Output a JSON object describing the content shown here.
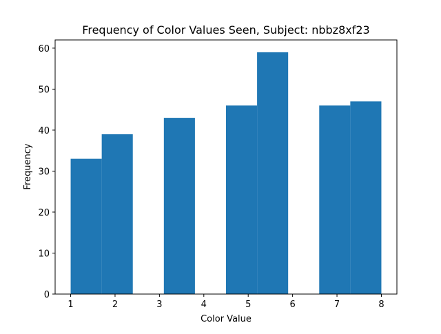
{
  "chart_data": {
    "type": "bar",
    "title": "Frequency of Color Values Seen, Subject: nbbz8xf23",
    "xlabel": "Color Value",
    "ylabel": "Frequency",
    "xlim": [
      0.65,
      8.35
    ],
    "ylim": [
      0,
      62
    ],
    "x_ticks": [
      1,
      2,
      3,
      4,
      5,
      6,
      7,
      8
    ],
    "y_ticks": [
      0,
      10,
      20,
      30,
      40,
      50,
      60
    ],
    "bins": [
      {
        "start": 1.0,
        "end": 1.7,
        "value": 33
      },
      {
        "start": 1.7,
        "end": 2.4,
        "value": 39
      },
      {
        "start": 2.4,
        "end": 3.1,
        "value": 0
      },
      {
        "start": 3.1,
        "end": 3.8,
        "value": 43
      },
      {
        "start": 3.8,
        "end": 4.5,
        "value": 0
      },
      {
        "start": 4.5,
        "end": 5.2,
        "value": 46
      },
      {
        "start": 5.2,
        "end": 5.9,
        "value": 59
      },
      {
        "start": 5.9,
        "end": 6.6,
        "value": 0
      },
      {
        "start": 6.6,
        "end": 7.3,
        "value": 46
      },
      {
        "start": 7.3,
        "end": 8.0,
        "value": 47
      }
    ],
    "bar_color": "#1f77b4",
    "grid": false,
    "legend": false
  }
}
